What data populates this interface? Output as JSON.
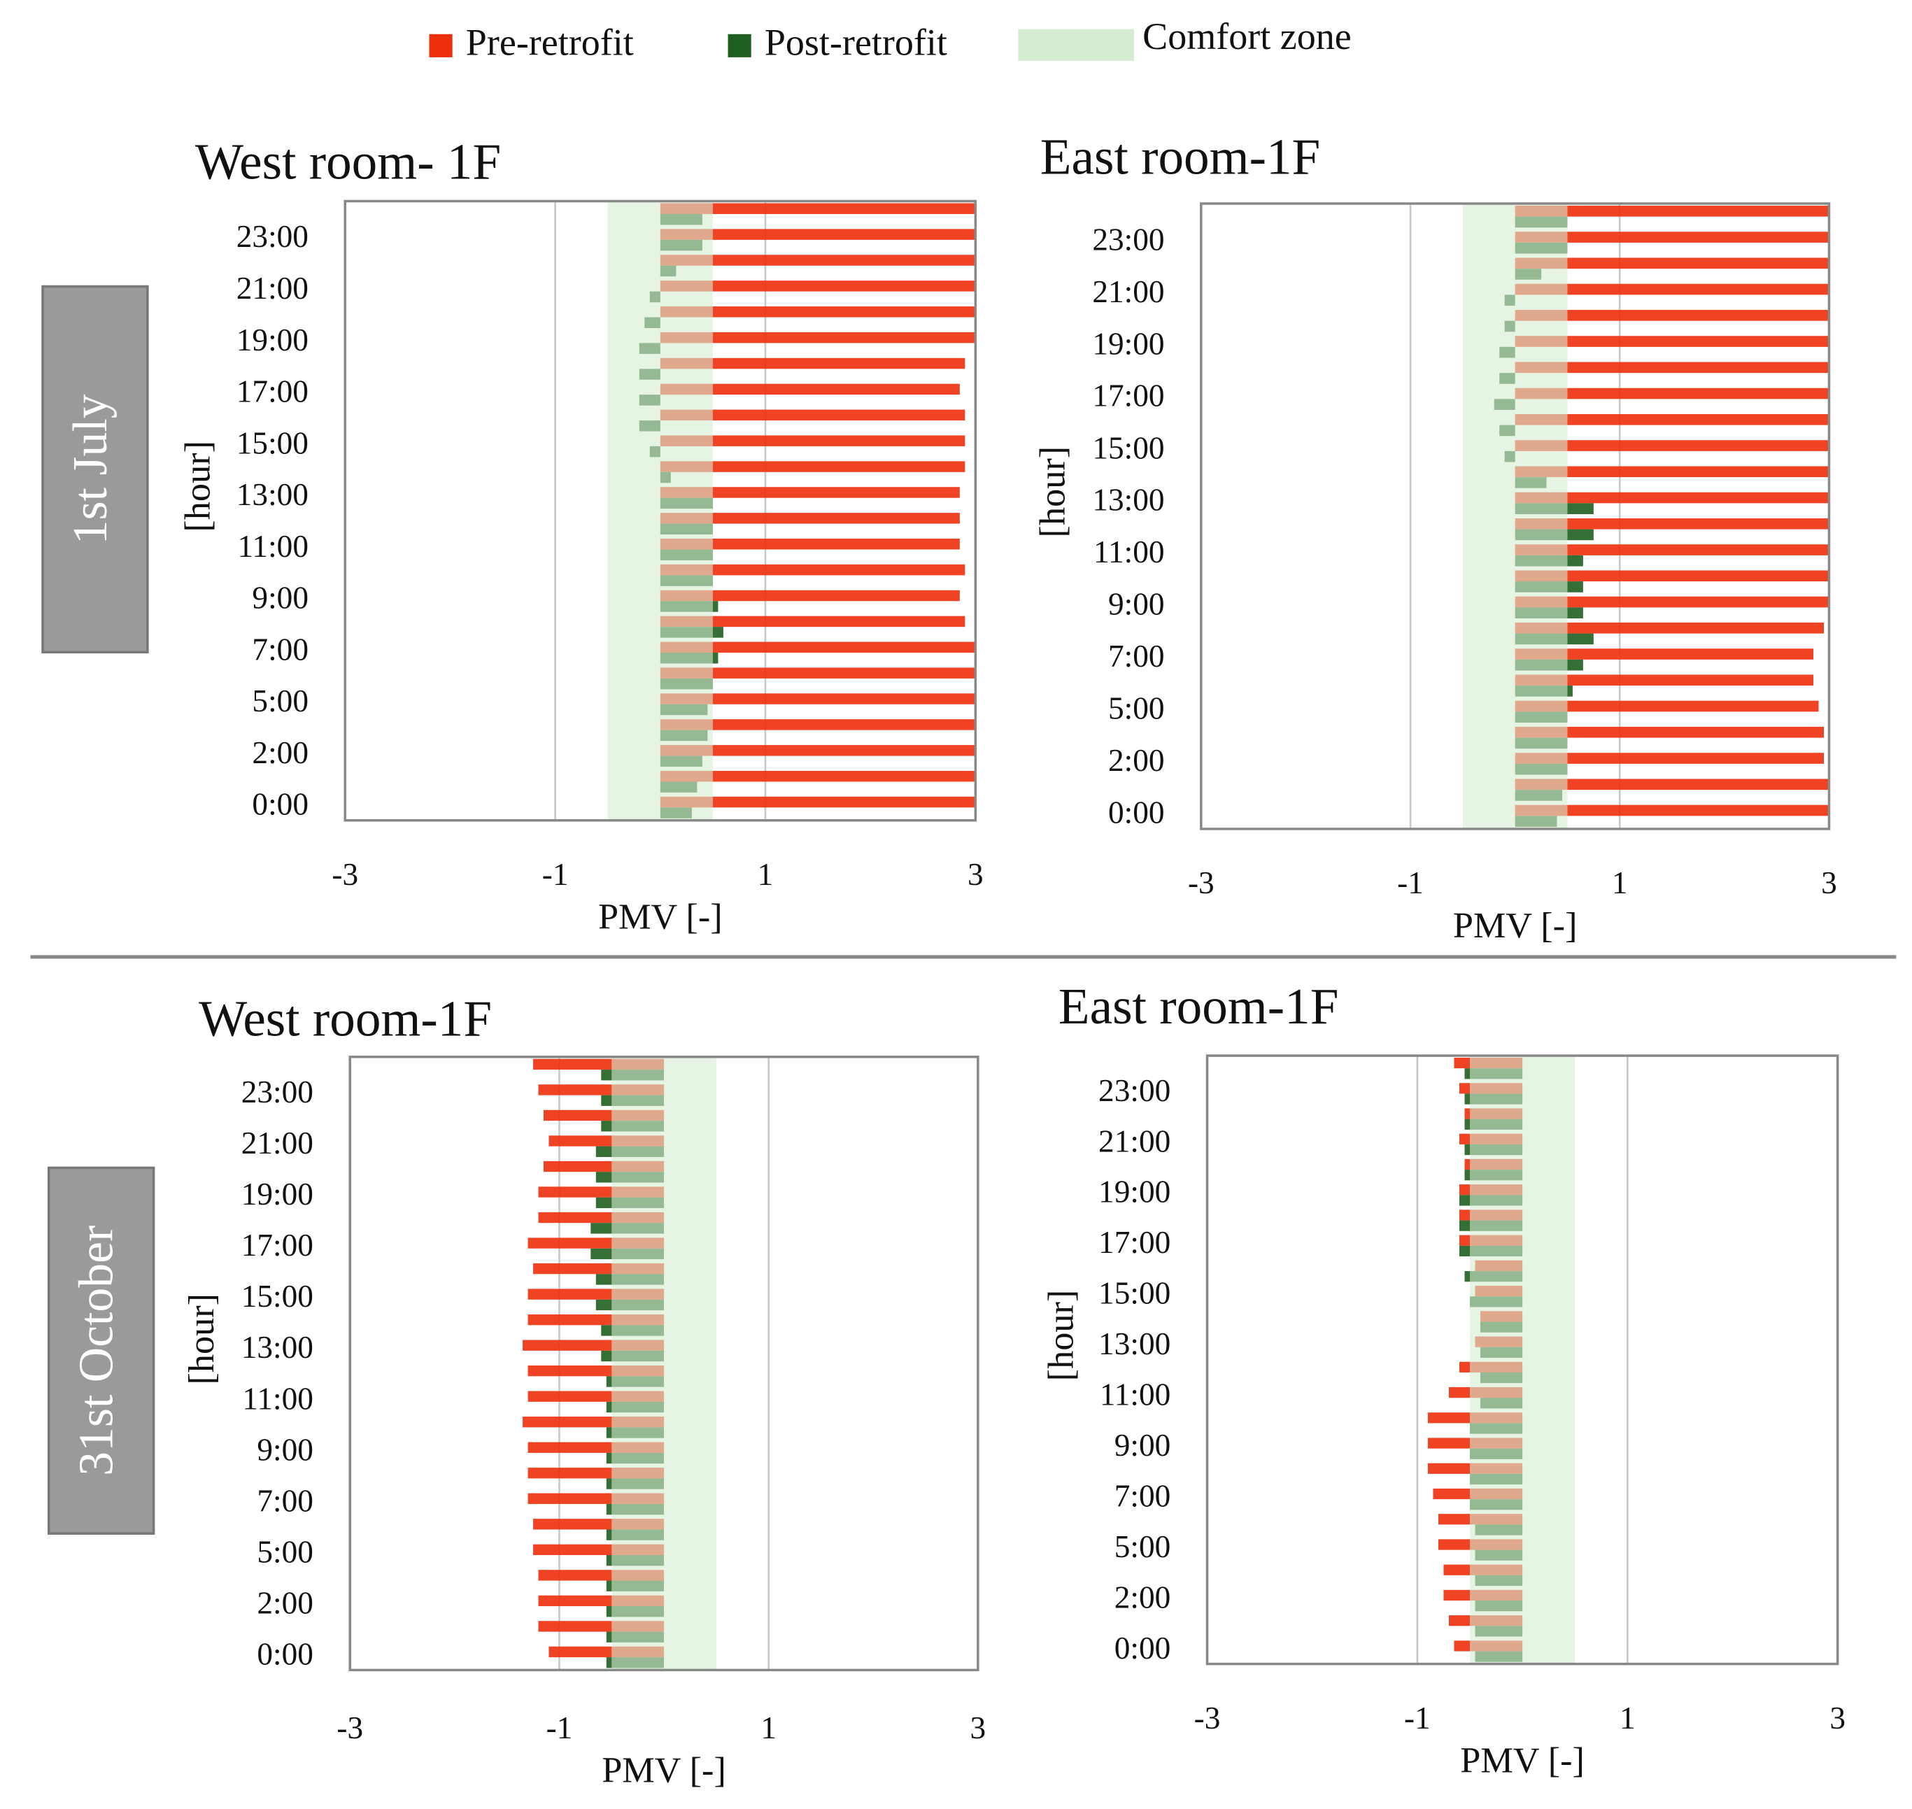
{
  "legend": [
    {
      "name": "Pre-retrofit",
      "color": "#ee2f0c"
    },
    {
      "name": "Post-retrofit",
      "color": "#1f5f1f"
    },
    {
      "name": "Comfort zone",
      "color": "#d6ecd2"
    }
  ],
  "row_labels": [
    "1st July",
    "31st October"
  ],
  "chart_data": [
    {
      "type": "bar",
      "orientation": "horizontal",
      "title": "West room- 1F",
      "x_label": "PMV [-]",
      "y_label": "[hour]",
      "categories": [
        "0:00",
        null,
        "2:00",
        null,
        "5:00",
        null,
        "7:00",
        null,
        "9:00",
        null,
        "11:00",
        null,
        "13:00",
        null,
        "15:00",
        null,
        "17:00",
        null,
        "19:00",
        null,
        "21:00",
        null,
        "23:00",
        null
      ],
      "series": [
        {
          "color": "#ee2f0c",
          "values": [
            3,
            3,
            3,
            3,
            3,
            3,
            3,
            2.9,
            2.85,
            2.9,
            2.85,
            2.85,
            2.85,
            2.9,
            2.9,
            2.9,
            2.85,
            2.9,
            3,
            3,
            3,
            3,
            3,
            3
          ]
        },
        {
          "color": "#1f5f1f",
          "values": [
            0.3,
            0.35,
            0.4,
            0.45,
            0.45,
            0.5,
            0.55,
            0.6,
            0.55,
            0.5,
            0.5,
            0.5,
            0.5,
            0.1,
            -0.1,
            -0.2,
            -0.2,
            -0.2,
            -0.2,
            -0.15,
            -0.1,
            0.15,
            0.4,
            0.4
          ]
        }
      ],
      "comfort_zone": [
        -0.5,
        0.5
      ],
      "xlim": [
        -3,
        3
      ],
      "xticks": [
        -3,
        -1,
        1,
        3
      ],
      "grid": true
    },
    {
      "type": "bar",
      "orientation": "horizontal",
      "title": "East room-1F",
      "x_label": "PMV [-]",
      "y_label": "[hour]",
      "categories": [
        "0:00",
        null,
        "2:00",
        null,
        "5:00",
        null,
        "7:00",
        null,
        "9:00",
        null,
        "11:00",
        null,
        "13:00",
        null,
        "15:00",
        null,
        "17:00",
        null,
        "19:00",
        null,
        "21:00",
        null,
        "23:00",
        null
      ],
      "series": [
        {
          "color": "#ee2f0c",
          "values": [
            3,
            3,
            2.95,
            2.95,
            2.9,
            2.85,
            2.85,
            2.95,
            3,
            3,
            3,
            3,
            3,
            3,
            3,
            3,
            3,
            3,
            3,
            3,
            3,
            3,
            3,
            3
          ]
        },
        {
          "color": "#1f5f1f",
          "values": [
            0.4,
            0.45,
            0.5,
            0.5,
            0.5,
            0.55,
            0.65,
            0.75,
            0.65,
            0.65,
            0.65,
            0.75,
            0.75,
            0.3,
            -0.1,
            -0.15,
            -0.2,
            -0.15,
            -0.15,
            -0.1,
            -0.1,
            0.25,
            0.5,
            0.5
          ]
        }
      ],
      "comfort_zone": [
        -0.5,
        0.5
      ],
      "xlim": [
        -3,
        3
      ],
      "xticks": [
        -3,
        -1,
        1,
        3
      ],
      "grid": true
    },
    {
      "type": "bar",
      "orientation": "horizontal",
      "title": "West room-1F",
      "x_label": "PMV [-]",
      "y_label": "[hour]",
      "categories": [
        "0:00",
        null,
        "2:00",
        null,
        "5:00",
        null,
        "7:00",
        null,
        "9:00",
        null,
        "11:00",
        null,
        "13:00",
        null,
        "15:00",
        null,
        "17:00",
        null,
        "19:00",
        null,
        "21:00",
        null,
        "23:00",
        null
      ],
      "series": [
        {
          "color": "#ee2f0c",
          "values": [
            -1.1,
            -1.2,
            -1.2,
            -1.2,
            -1.25,
            -1.25,
            -1.3,
            -1.3,
            -1.3,
            -1.35,
            -1.3,
            -1.3,
            -1.35,
            -1.3,
            -1.3,
            -1.25,
            -1.3,
            -1.2,
            -1.2,
            -1.15,
            -1.1,
            -1.15,
            -1.2,
            -1.25
          ]
        },
        {
          "color": "#1f5f1f",
          "values": [
            -0.55,
            -0.55,
            -0.55,
            -0.55,
            -0.55,
            -0.55,
            -0.55,
            -0.55,
            -0.55,
            -0.55,
            -0.55,
            -0.55,
            -0.6,
            -0.6,
            -0.65,
            -0.65,
            -0.7,
            -0.7,
            -0.65,
            -0.65,
            -0.65,
            -0.6,
            -0.6,
            -0.6
          ]
        }
      ],
      "comfort_zone": [
        -0.5,
        0.5
      ],
      "xlim": [
        -3,
        3
      ],
      "xticks": [
        -3,
        -1,
        1,
        3
      ],
      "grid": true
    },
    {
      "type": "bar",
      "orientation": "horizontal",
      "title": "East room-1F",
      "x_label": "PMV [-]",
      "y_label": "[hour]",
      "categories": [
        "0:00",
        null,
        "2:00",
        null,
        "5:00",
        null,
        "7:00",
        null,
        "9:00",
        null,
        "11:00",
        null,
        "13:00",
        null,
        "15:00",
        null,
        "17:00",
        null,
        "19:00",
        null,
        "21:00",
        null,
        "23:00",
        null
      ],
      "series": [
        {
          "color": "#ee2f0c",
          "values": [
            -0.65,
            -0.7,
            -0.75,
            -0.75,
            -0.8,
            -0.8,
            -0.85,
            -0.9,
            -0.9,
            -0.9,
            -0.7,
            -0.6,
            -0.45,
            -0.4,
            -0.45,
            -0.45,
            -0.6,
            -0.6,
            -0.6,
            -0.55,
            -0.6,
            -0.55,
            -0.6,
            -0.65
          ]
        },
        {
          "color": "#1f5f1f",
          "values": [
            -0.45,
            -0.45,
            -0.45,
            -0.45,
            -0.45,
            -0.45,
            -0.5,
            -0.5,
            -0.5,
            -0.5,
            -0.4,
            -0.4,
            -0.4,
            -0.4,
            -0.5,
            -0.55,
            -0.6,
            -0.6,
            -0.6,
            -0.55,
            -0.55,
            -0.55,
            -0.55,
            -0.55
          ]
        }
      ],
      "comfort_zone": [
        -0.5,
        0.5
      ],
      "xlim": [
        -3,
        3
      ],
      "xticks": [
        -3,
        -1,
        1,
        3
      ],
      "grid": true
    }
  ]
}
